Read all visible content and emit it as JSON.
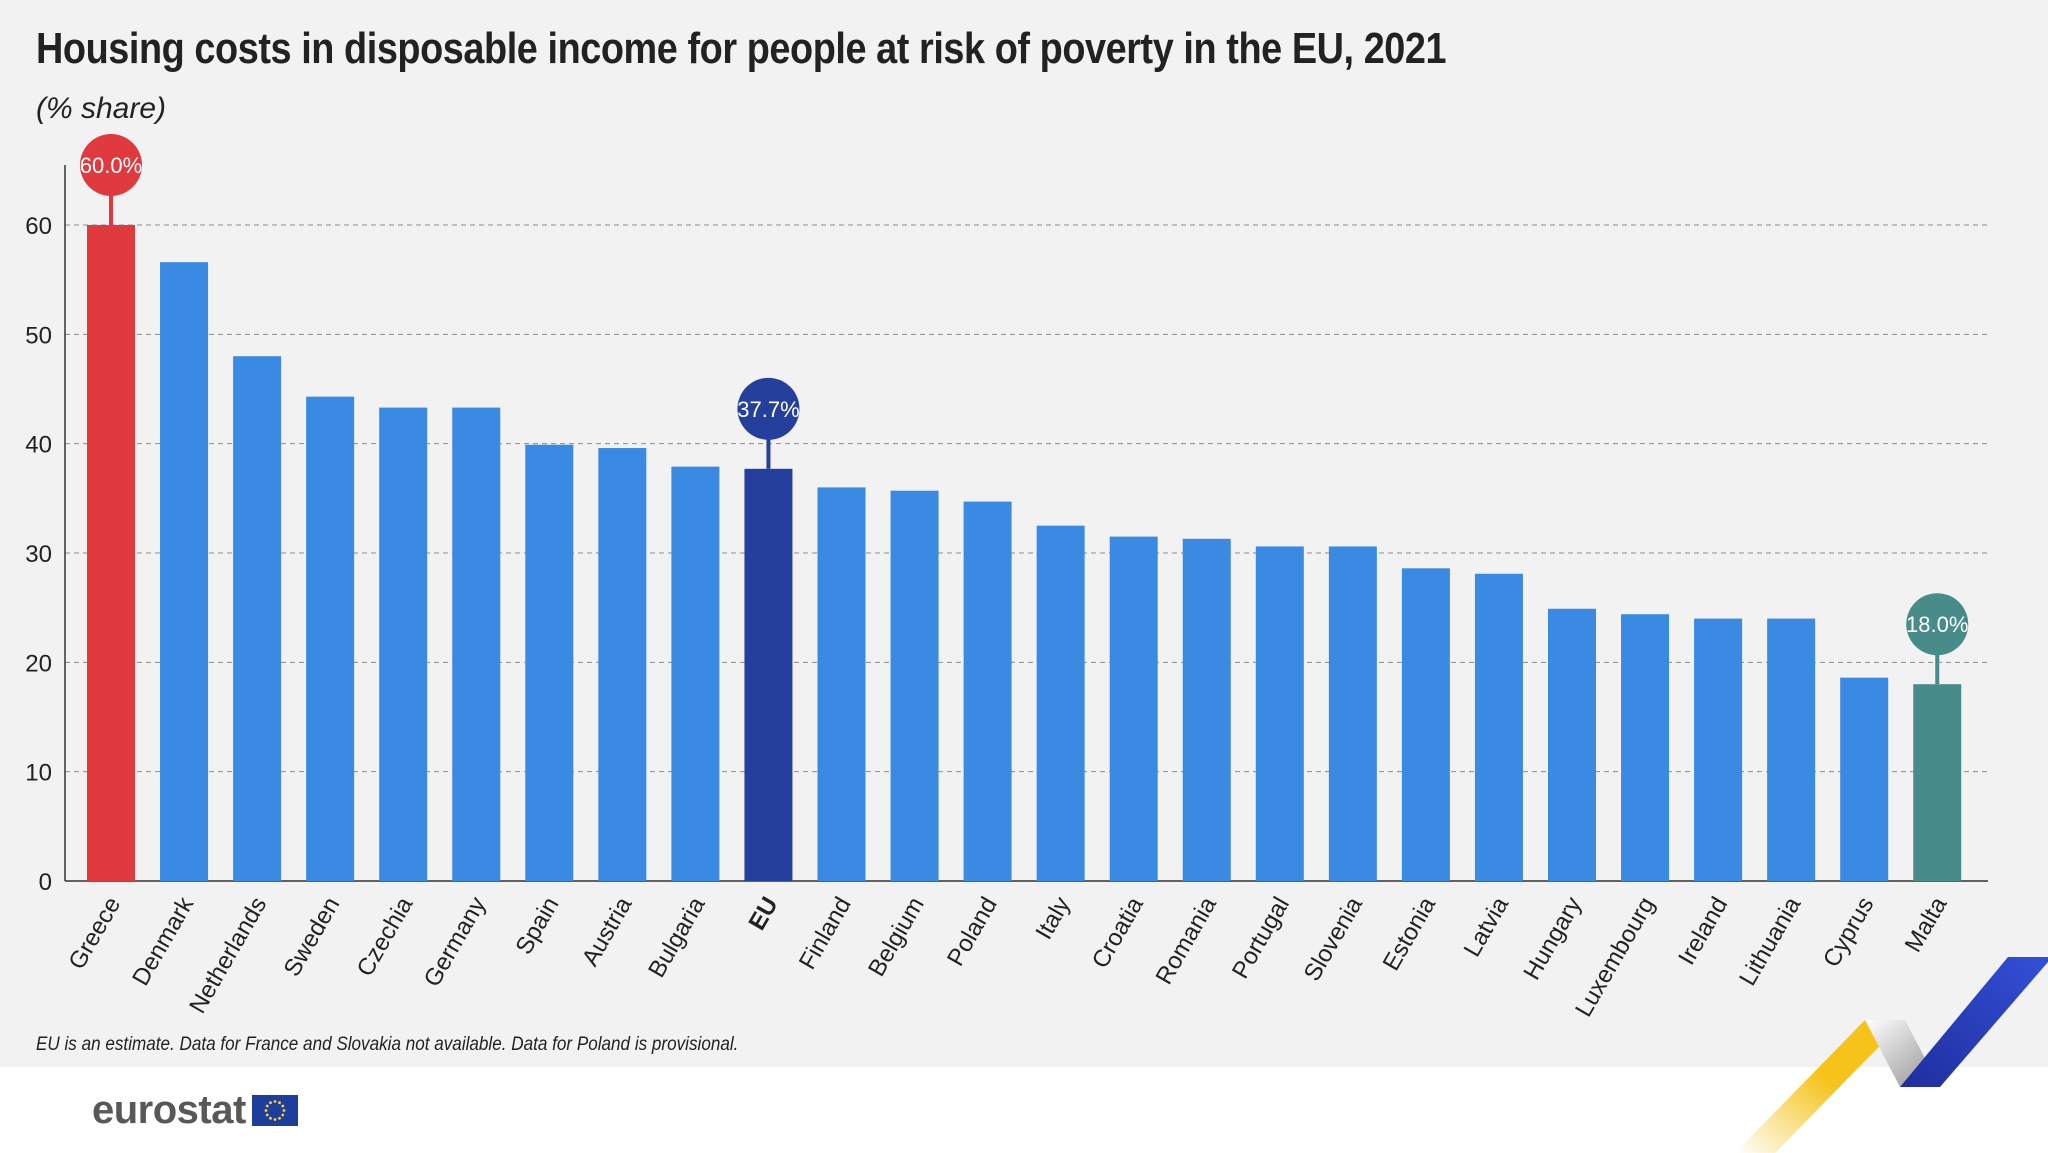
{
  "header": {
    "title": "Housing costs in disposable income for people at risk of poverty in the EU, 2021",
    "subtitle": "(% share)"
  },
  "footnote": "EU is an estimate. Data for France and Slovakia not available. Data for Poland is provisional.",
  "logo": {
    "text": "eurostat",
    "icon": "eu-flag-icon"
  },
  "colors": {
    "default_bar": "#3a8ae3",
    "max_bar": "#e0393e",
    "eu_bar": "#253f9d",
    "min_bar": "#478c89",
    "grid": "#8c8c8c",
    "axis": "#333333"
  },
  "chart_data": {
    "type": "bar",
    "title": "Housing costs in disposable income for people at risk of poverty in the EU, 2021",
    "subtitle": "(% share)",
    "categories": [
      "Greece",
      "Denmark",
      "Netherlands",
      "Sweden",
      "Czechia",
      "Germany",
      "Spain",
      "Austria",
      "Bulgaria",
      "EU",
      "Finland",
      "Belgium",
      "Poland",
      "Italy",
      "Croatia",
      "Romania",
      "Portugal",
      "Slovenia",
      "Estonia",
      "Latvia",
      "Hungary",
      "Luxembourg",
      "Ireland",
      "Lithuania",
      "Cyprus",
      "Malta"
    ],
    "values": [
      60.0,
      56.6,
      48.0,
      44.3,
      43.3,
      43.3,
      39.9,
      39.6,
      37.9,
      37.7,
      36.0,
      35.7,
      34.7,
      32.5,
      31.5,
      31.3,
      30.6,
      30.6,
      28.6,
      28.1,
      24.9,
      24.4,
      24.0,
      24.0,
      18.6,
      18.0
    ],
    "ylim": [
      0,
      65
    ],
    "yticks": [
      0,
      10,
      20,
      30,
      40,
      50,
      60
    ],
    "grid": true,
    "highlights": [
      {
        "category": "Greece",
        "label": "60.0%",
        "color": "#e0393e"
      },
      {
        "category": "EU",
        "label": "37.7%",
        "color": "#253f9d"
      },
      {
        "category": "Malta",
        "label": "18.0%",
        "color": "#478c89"
      }
    ],
    "bold_categories": [
      "EU"
    ]
  }
}
